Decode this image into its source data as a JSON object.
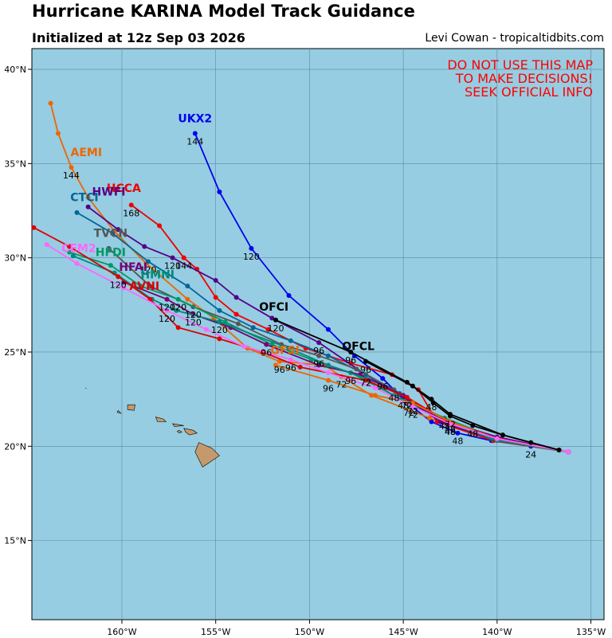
{
  "title": "Hurricane KARINA Model Track Guidance",
  "subtitle": "Initialized at 12z Sep 03 2026",
  "credit": "Levi Cowan - tropicaltidbits.com",
  "warning": [
    "DO NOT USE THIS MAP",
    "TO MAKE DECISIONS!",
    "SEEK OFFICIAL INFO"
  ],
  "colors": {
    "ocean": "#96cde2",
    "land": "#c49a6c",
    "warning": "#ff0000"
  },
  "chart_data": {
    "type": "line",
    "xlabel": "",
    "ylabel": "",
    "xlim": [
      -164.8,
      -134.3
    ],
    "ylim": [
      10.8,
      41.1
    ],
    "x_ticks": [
      -160,
      -155,
      -150,
      -145,
      -140,
      -135
    ],
    "x_tick_labels": [
      "160°W",
      "155°W",
      "150°W",
      "145°W",
      "140°W",
      "135°W"
    ],
    "y_ticks": [
      15,
      20,
      25,
      30,
      35,
      40
    ],
    "y_tick_labels": [
      "15°N",
      "20°N",
      "25°N",
      "30°N",
      "35°N",
      "40°N"
    ],
    "grid": true,
    "series": [
      {
        "name": "UKX2",
        "color": "#0000ee",
        "points": [
          [
            -136.2,
            19.7
          ],
          [
            -138.2,
            20.0
          ],
          [
            -140.3,
            20.3
          ],
          [
            -142.1,
            20.7
          ],
          [
            -143.5,
            21.3
          ],
          [
            -144.8,
            22.3
          ],
          [
            -146.1,
            23.6
          ],
          [
            -147.6,
            24.8
          ],
          [
            -149.0,
            26.2
          ],
          [
            -151.1,
            28.0
          ],
          [
            -153.1,
            30.5
          ],
          [
            -154.8,
            33.5
          ],
          [
            -156.1,
            36.6
          ]
        ],
        "hour_labels": [
          [
            1,
            "24"
          ],
          [
            3,
            "48"
          ],
          [
            6,
            "96"
          ],
          [
            10,
            "120"
          ],
          [
            12,
            "144"
          ]
        ]
      },
      {
        "name": "AEMI",
        "color": "#ee6600",
        "points": [
          [
            -136.2,
            19.7
          ],
          [
            -140.2,
            20.3
          ],
          [
            -143.6,
            21.5
          ],
          [
            -146.7,
            22.7
          ],
          [
            -148.3,
            23.7
          ],
          [
            -149.2,
            24.3
          ],
          [
            -151.6,
            24.5
          ],
          [
            -153.3,
            25.2
          ],
          [
            -155.1,
            26.8
          ],
          [
            -156.5,
            27.8
          ],
          [
            -158.7,
            29.7
          ],
          [
            -160.4,
            31.4
          ],
          [
            -161.8,
            33.2
          ],
          [
            -162.7,
            34.8
          ],
          [
            -163.4,
            36.6
          ],
          [
            -163.8,
            38.2
          ]
        ],
        "hour_labels": [
          [
            4,
            "72"
          ],
          [
            6,
            "96"
          ],
          [
            13,
            "144"
          ]
        ]
      },
      {
        "name": "HCCA",
        "color": "#ee0000",
        "points": [
          [
            -136.2,
            19.7
          ],
          [
            -140.2,
            20.3
          ],
          [
            -143.2,
            21.3
          ],
          [
            -144.2,
            23.0
          ],
          [
            -145.6,
            23.8
          ],
          [
            -147.8,
            24.4
          ],
          [
            -150.2,
            25.2
          ],
          [
            -152.2,
            26.2
          ],
          [
            -153.9,
            27.0
          ],
          [
            -155.0,
            27.9
          ],
          [
            -156.0,
            29.4
          ],
          [
            -156.7,
            30.0
          ],
          [
            -158.0,
            31.7
          ],
          [
            -159.5,
            32.8
          ]
        ],
        "hour_labels": [
          [
            11,
            "144"
          ],
          [
            13,
            "168"
          ]
        ]
      },
      {
        "name": "HWFI",
        "color": "#550088",
        "points": [
          [
            -136.2,
            19.7
          ],
          [
            -140.3,
            20.4
          ],
          [
            -143.0,
            21.3
          ],
          [
            -145.0,
            22.6
          ],
          [
            -147.0,
            23.8
          ],
          [
            -149.5,
            25.5
          ],
          [
            -152.0,
            26.8
          ],
          [
            -153.9,
            27.9
          ],
          [
            -155.0,
            28.8
          ],
          [
            -157.3,
            30.0
          ],
          [
            -158.8,
            30.6
          ],
          [
            -160.2,
            31.5
          ],
          [
            -161.8,
            32.7
          ]
        ],
        "hour_labels": [
          [
            3,
            "48"
          ],
          [
            4,
            "72"
          ],
          [
            5,
            "96"
          ],
          [
            9,
            "120"
          ]
        ]
      },
      {
        "name": "CTCI",
        "color": "#006699",
        "points": [
          [
            -136.2,
            19.7
          ],
          [
            -140.3,
            20.4
          ],
          [
            -143.1,
            21.5
          ],
          [
            -145.2,
            22.8
          ],
          [
            -147.0,
            23.8
          ],
          [
            -149.0,
            24.8
          ],
          [
            -151.0,
            25.6
          ],
          [
            -153.0,
            26.3
          ],
          [
            -154.8,
            27.2
          ],
          [
            -156.5,
            28.5
          ],
          [
            -158.6,
            29.8
          ],
          [
            -160.5,
            31.3
          ],
          [
            -162.4,
            32.4
          ]
        ],
        "hour_labels": [
          [
            4,
            "72"
          ],
          [
            10,
            "120"
          ]
        ]
      },
      {
        "name": "TVCN",
        "color": "#555555",
        "points": [
          [
            -136.2,
            19.7
          ],
          [
            -140.0,
            20.4
          ],
          [
            -143.0,
            21.5
          ],
          [
            -145.5,
            23.0
          ],
          [
            -147.5,
            24.1
          ],
          [
            -149.5,
            24.8
          ],
          [
            -151.5,
            25.4
          ],
          [
            -153.8,
            26.5
          ],
          [
            -156.2,
            27.4
          ],
          [
            -158.5,
            28.5
          ],
          [
            -160.7,
            30.5
          ]
        ],
        "hour_labels": [
          [
            3,
            "48"
          ],
          [
            5,
            "96"
          ],
          [
            8,
            "120"
          ]
        ]
      },
      {
        "name": "HFDI",
        "color": "#009966",
        "points": [
          [
            -136.2,
            19.7
          ],
          [
            -140.0,
            20.4
          ],
          [
            -142.8,
            21.5
          ],
          [
            -145.5,
            22.7
          ],
          [
            -147.8,
            23.9
          ],
          [
            -149.9,
            24.6
          ],
          [
            -152.0,
            25.4
          ],
          [
            -154.5,
            26.6
          ],
          [
            -157.0,
            27.8
          ],
          [
            -159.0,
            28.5
          ],
          [
            -160.6,
            29.6
          ],
          [
            -162.8,
            30.3
          ]
        ],
        "hour_labels": [
          [
            2,
            "48"
          ],
          [
            4,
            "96"
          ],
          [
            8,
            "120"
          ]
        ]
      },
      {
        "name": "HFAI",
        "color": "#770077",
        "points": [
          [
            -136.2,
            19.7
          ],
          [
            -140.0,
            20.5
          ],
          [
            -143.0,
            21.4
          ],
          [
            -145.0,
            22.7
          ],
          [
            -147.3,
            23.8
          ],
          [
            -149.5,
            24.3
          ],
          [
            -152.3,
            25.4
          ],
          [
            -154.2,
            26.3
          ],
          [
            -156.2,
            27.0
          ],
          [
            -157.6,
            27.8
          ],
          [
            -159.9,
            28.7
          ]
        ],
        "hour_labels": [
          [
            6,
            "96"
          ],
          [
            8,
            "120"
          ],
          [
            9,
            "120"
          ]
        ]
      },
      {
        "name": "HMNI",
        "color": "#008877",
        "points": [
          [
            -136.2,
            19.7
          ],
          [
            -140.0,
            20.3
          ],
          [
            -142.5,
            21.2
          ],
          [
            -144.7,
            22.2
          ],
          [
            -147.0,
            23.6
          ],
          [
            -149.0,
            24.3
          ],
          [
            -151.1,
            25.2
          ],
          [
            -154.8,
            26.6
          ],
          [
            -157.1,
            27.2
          ],
          [
            -158.4,
            27.8
          ],
          [
            -160.4,
            29.2
          ],
          [
            -162.6,
            30.1
          ]
        ],
        "hour_labels": [
          [
            2,
            "48"
          ],
          [
            3,
            "72"
          ],
          [
            7,
            "120"
          ]
        ]
      },
      {
        "name": "AVNI",
        "color": "#dd0000",
        "points": [
          [
            -136.2,
            19.7
          ],
          [
            -140.0,
            20.4
          ],
          [
            -142.8,
            21.4
          ],
          [
            -144.8,
            22.6
          ],
          [
            -147.0,
            23.5
          ],
          [
            -150.5,
            24.2
          ],
          [
            -152.5,
            25.0
          ],
          [
            -154.8,
            25.7
          ],
          [
            -157.0,
            26.3
          ],
          [
            -158.5,
            27.8
          ],
          [
            -160.2,
            29.0
          ],
          [
            -162.8,
            30.6
          ],
          [
            -164.7,
            31.6
          ]
        ],
        "hour_labels": [
          [
            3,
            "72"
          ],
          [
            10,
            "120"
          ]
        ]
      },
      {
        "name": "GFSI",
        "color": "#ee6600",
        "points": [
          [
            -136.2,
            19.7
          ],
          [
            -140.0,
            20.4
          ],
          [
            -142.5,
            21.3
          ],
          [
            -144.5,
            22.3
          ],
          [
            -146.5,
            22.7
          ],
          [
            -149.0,
            23.5
          ],
          [
            -151.8,
            24.3
          ]
        ],
        "hour_labels": [
          [
            2,
            "48"
          ],
          [
            3,
            "72"
          ],
          [
            5,
            "96"
          ]
        ]
      },
      {
        "name": "CEM2",
        "color": "#ff66ff",
        "points": [
          [
            -136.2,
            19.7
          ],
          [
            -140.0,
            20.4
          ],
          [
            -142.5,
            21.2
          ],
          [
            -144.5,
            22.1
          ],
          [
            -146.5,
            23.1
          ],
          [
            -149.0,
            23.9
          ],
          [
            -151.0,
            24.6
          ],
          [
            -153.5,
            25.3
          ],
          [
            -155.5,
            26.2
          ],
          [
            -157.6,
            27.2
          ],
          [
            -159.9,
            28.4
          ],
          [
            -162.4,
            29.7
          ],
          [
            -164.0,
            30.7
          ]
        ],
        "hour_labels": [
          [
            2,
            "48"
          ],
          [
            3,
            "72"
          ],
          [
            6,
            "96"
          ],
          [
            9,
            "120"
          ]
        ]
      },
      {
        "name": "OFCI",
        "color": "#000000",
        "points": [
          [
            -136.7,
            19.8
          ],
          [
            -139.7,
            20.6
          ],
          [
            -142.5,
            21.7
          ],
          [
            -143.5,
            22.5
          ],
          [
            -144.8,
            23.4
          ],
          [
            -147.8,
            25.0
          ],
          [
            -151.8,
            26.7
          ]
        ],
        "hour_labels": [
          [
            3,
            "48"
          ],
          [
            5,
            "96"
          ],
          [
            6,
            "120"
          ]
        ]
      },
      {
        "name": "OFCL",
        "color": "#000000",
        "points": [
          [
            -136.7,
            19.8
          ],
          [
            -138.2,
            20.2
          ],
          [
            -139.7,
            20.6
          ],
          [
            -141.3,
            21.1
          ],
          [
            -142.5,
            21.6
          ],
          [
            -143.4,
            22.3
          ],
          [
            -144.5,
            23.2
          ],
          [
            -147.0,
            24.5
          ]
        ],
        "hour_labels": [
          [
            3,
            "48"
          ],
          [
            4,
            "72"
          ],
          [
            7,
            "96"
          ]
        ]
      }
    ],
    "series_labels": [
      {
        "name": "UKX2",
        "color": "#0000ee",
        "lon": -156.1,
        "lat": 37.2
      },
      {
        "name": "AEMI",
        "color": "#ee6600",
        "lon": -161.9,
        "lat": 35.4
      },
      {
        "name": "HCCA",
        "color": "#ee0000",
        "lon": -159.9,
        "lat": 33.5
      },
      {
        "name": "HWFI",
        "color": "#550088",
        "lon": -160.7,
        "lat": 33.3
      },
      {
        "name": "CTCI",
        "color": "#006699",
        "lon": -162.0,
        "lat": 33.0
      },
      {
        "name": "TVCN",
        "color": "#555555",
        "lon": -160.6,
        "lat": 31.1
      },
      {
        "name": "HFDI",
        "color": "#009966",
        "lon": -160.6,
        "lat": 30.1
      },
      {
        "name": "CEM2",
        "color": "#ff66ff",
        "lon": -162.3,
        "lat": 30.3
      },
      {
        "name": "HFAI",
        "color": "#770077",
        "lon": -159.4,
        "lat": 29.3
      },
      {
        "name": "HMNI",
        "color": "#008877",
        "lon": -158.1,
        "lat": 28.9
      },
      {
        "name": "AVNI",
        "color": "#dd0000",
        "lon": -158.8,
        "lat": 28.3
      },
      {
        "name": "OFCI",
        "color": "#000000",
        "lon": -151.9,
        "lat": 27.2
      },
      {
        "name": "GFSI",
        "color": "#ee6600",
        "lon": -151.3,
        "lat": 24.9
      },
      {
        "name": "OFCL",
        "color": "#000000",
        "lon": -147.4,
        "lat": 25.1
      }
    ],
    "islands": [
      [
        [
          -155.9,
          20.2
        ],
        [
          -155.2,
          19.9
        ],
        [
          -154.8,
          19.5
        ],
        [
          -155.4,
          19.1
        ],
        [
          -155.7,
          18.9
        ],
        [
          -155.9,
          19.3
        ],
        [
          -156.1,
          19.7
        ]
      ],
      [
        [
          -156.7,
          20.95
        ],
        [
          -156.2,
          20.85
        ],
        [
          -156.0,
          20.7
        ],
        [
          -156.4,
          20.6
        ],
        [
          -156.6,
          20.75
        ]
      ],
      [
        [
          -157.3,
          21.2
        ],
        [
          -157.0,
          21.15
        ],
        [
          -156.7,
          21.1
        ],
        [
          -157.2,
          21.05
        ]
      ],
      [
        [
          -156.95,
          20.85
        ],
        [
          -156.8,
          20.75
        ],
        [
          -156.95,
          20.7
        ],
        [
          -157.05,
          20.8
        ]
      ],
      [
        [
          -158.2,
          21.55
        ],
        [
          -157.8,
          21.45
        ],
        [
          -157.65,
          21.3
        ],
        [
          -158.1,
          21.3
        ]
      ],
      [
        [
          -159.7,
          22.2
        ],
        [
          -159.3,
          22.2
        ],
        [
          -159.35,
          21.9
        ],
        [
          -159.7,
          21.95
        ]
      ],
      [
        [
          -160.2,
          21.9
        ],
        [
          -160.05,
          21.75
        ],
        [
          -160.25,
          21.8
        ]
      ],
      [
        [
          -161.95,
          23.1
        ],
        [
          -161.9,
          23.05
        ]
      ]
    ]
  }
}
